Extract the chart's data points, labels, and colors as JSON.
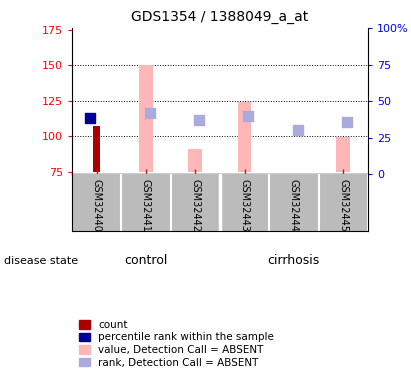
{
  "title": "GDS1354 / 1388049_a_at",
  "samples": [
    "GSM32440",
    "GSM32441",
    "GSM32442",
    "GSM32443",
    "GSM32444",
    "GSM32445"
  ],
  "ylim_left": [
    73,
    176
  ],
  "ylim_right": [
    0,
    100
  ],
  "yticks_left": [
    75,
    100,
    125,
    150,
    175
  ],
  "yticks_right": [
    0,
    25,
    50,
    75,
    100
  ],
  "ytick_labels_left": [
    "75",
    "100",
    "125",
    "150",
    "175"
  ],
  "ytick_labels_right": [
    "0",
    "25",
    "50",
    "75",
    "100%"
  ],
  "red_bars": [
    107,
    null,
    null,
    null,
    null,
    null
  ],
  "pink_bars": [
    null,
    150,
    91,
    124,
    null,
    99
  ],
  "blue_squares": [
    113,
    null,
    null,
    null,
    null,
    null
  ],
  "light_blue_squares": [
    null,
    116,
    111,
    114,
    104,
    110
  ],
  "baseline": 75,
  "bar_bottom": 75,
  "red_bar_color": "#AA0000",
  "pink_bar_color": "#FFB6B6",
  "blue_sq_color": "#000099",
  "light_blue_sq_color": "#AAAADD",
  "grid_lines": [
    100,
    125,
    150
  ],
  "control_color": "#90EE90",
  "cirrhosis_color": "#33CC33",
  "label_bg_color": "#BBBBBB",
  "legend_items": [
    {
      "color": "#AA0000",
      "label": "count"
    },
    {
      "color": "#000099",
      "label": "percentile rank within the sample"
    },
    {
      "color": "#FFB6B6",
      "label": "value, Detection Call = ABSENT"
    },
    {
      "color": "#AAAADD",
      "label": "rank, Detection Call = ABSENT"
    }
  ]
}
